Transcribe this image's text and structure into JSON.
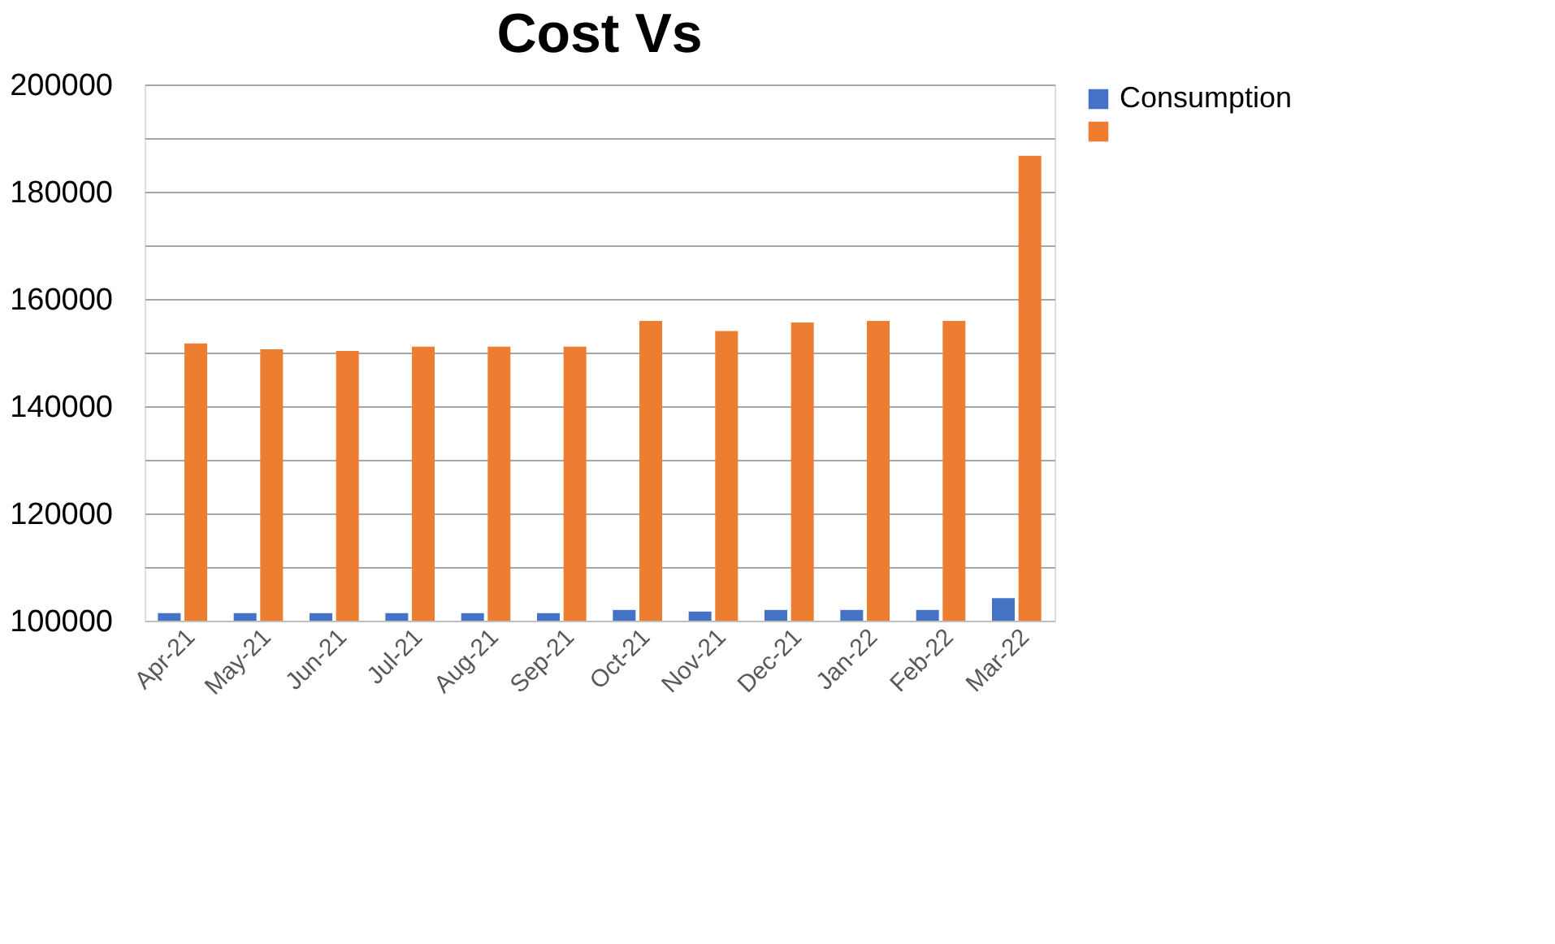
{
  "chart_data": {
    "type": "bar",
    "title": "Cost Vs",
    "categories": [
      "Apr-21",
      "May-21",
      "Jun-21",
      "Jul-21",
      "Aug-21",
      "Sep-21",
      "Oct-21",
      "Nov-21",
      "Dec-21",
      "Jan-22",
      "Feb-22",
      "Mar-22"
    ],
    "series": [
      {
        "name": "Consumption",
        "color": "#4472c4",
        "values": [
          101400,
          101400,
          101400,
          101400,
          101400,
          101400,
          102000,
          101700,
          102000,
          102000,
          102000,
          104200
        ]
      },
      {
        "color": "#ed7d31",
        "values": [
          151700,
          150600,
          150300,
          151100,
          151100,
          151100,
          155900,
          154000,
          155600,
          155900,
          155900,
          186700
        ]
      }
    ],
    "ylim": [
      100000,
      200000
    ],
    "yticks": [
      100000,
      {
        "value": 110000,
        "label": null
      },
      120000,
      {
        "value": 130000,
        "label": null
      },
      140000,
      {
        "value": 150000,
        "label": null
      },
      160000,
      {
        "value": 170000,
        "label": null
      },
      180000,
      {
        "value": 190000,
        "label": null
      },
      200000
    ],
    "grid": "y",
    "legend": "right"
  }
}
